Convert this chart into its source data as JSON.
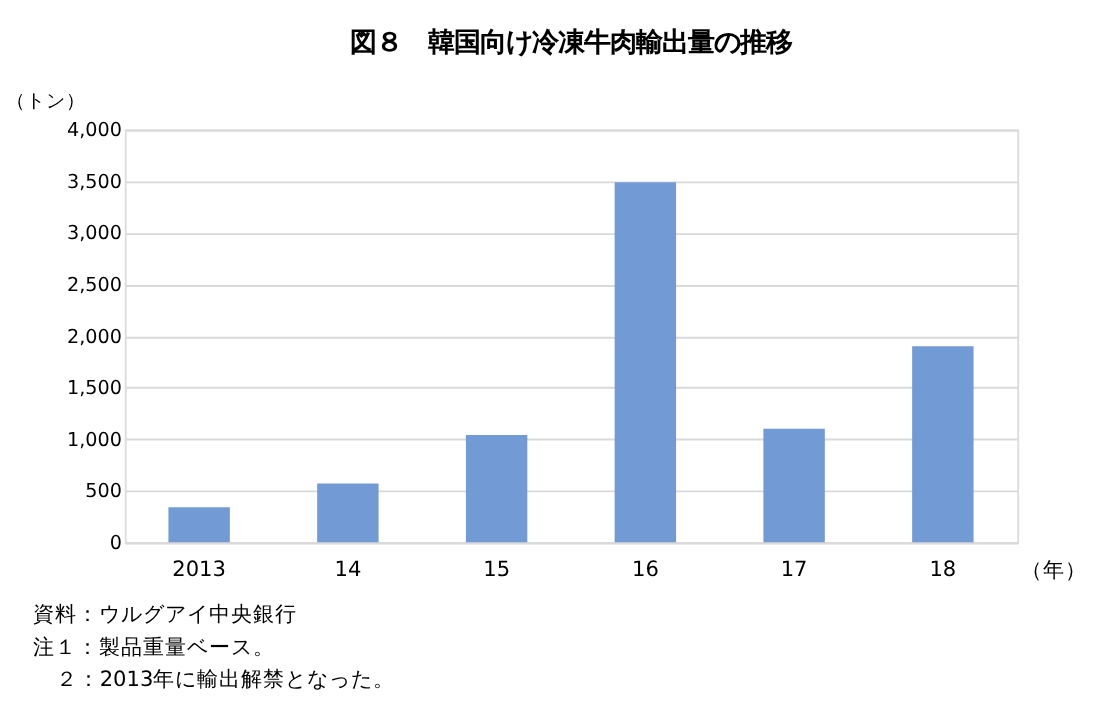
{
  "chart_data": {
    "type": "bar",
    "title": "図８　韓国向け冷凍牛肉輸出量の推移",
    "ylabel": "（トン）",
    "xlabel": "（年）",
    "categories": [
      "2013",
      "14",
      "15",
      "16",
      "17",
      "18"
    ],
    "series": [
      {
        "color": "#729bd5",
        "values": [
          340,
          570,
          1040,
          3490,
          1100,
          1900
        ]
      }
    ],
    "ylim": [
      0,
      4000
    ],
    "yticks": [
      {
        "value": 0,
        "label": "0"
      },
      {
        "value": 500,
        "label": "500"
      },
      {
        "value": 1000,
        "label": "1,000"
      },
      {
        "value": 1500,
        "label": "1,500"
      },
      {
        "value": 2000,
        "label": "2,000"
      },
      {
        "value": 2500,
        "label": "2,500"
      },
      {
        "value": 3000,
        "label": "3,000"
      },
      {
        "value": 3500,
        "label": "3,500"
      },
      {
        "value": 4000,
        "label": "4,000"
      }
    ],
    "grid": "y",
    "legend": false,
    "annotations": [
      "資料：ウルグアイ中央銀行",
      "注１：製品重量ベース。",
      "２：2013年に輸出解禁となった。"
    ]
  }
}
